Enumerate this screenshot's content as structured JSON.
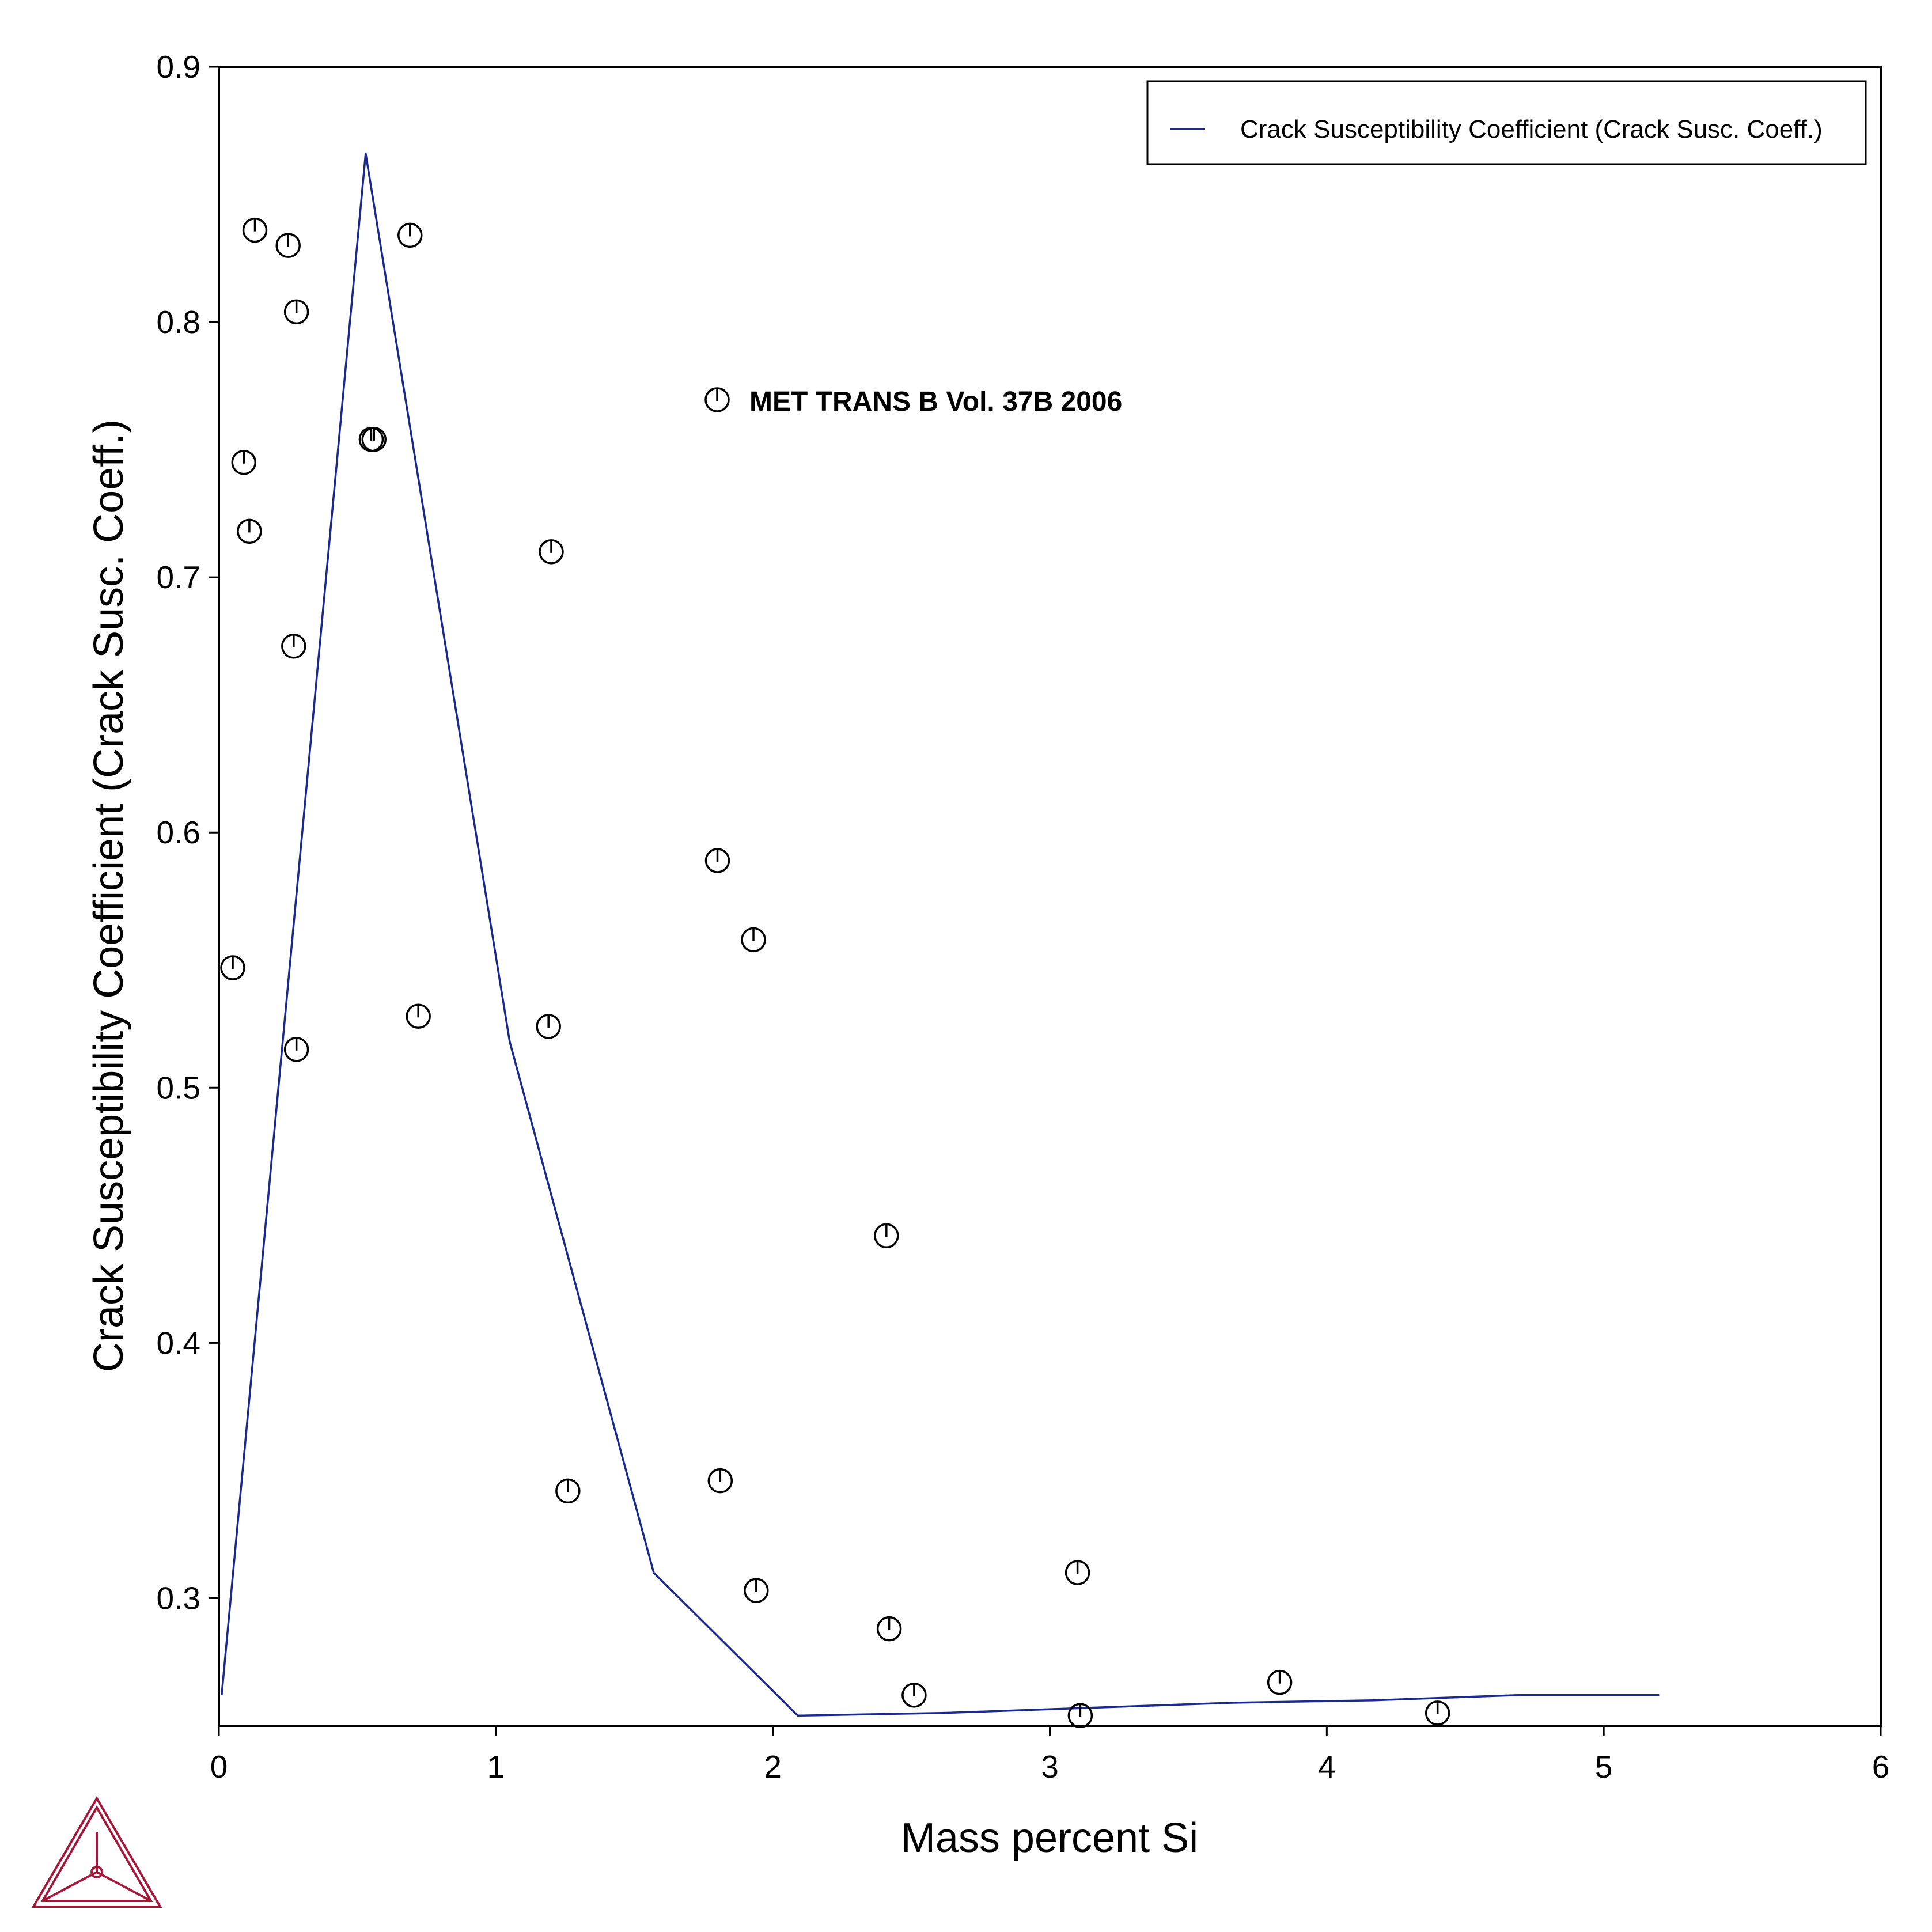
{
  "chart_data": {
    "type": "line",
    "title": "",
    "xlabel": "Mass percent Si",
    "ylabel": "Crack Susceptibility Coefficient (Crack Susc. Coeff.)",
    "xlim": [
      0,
      6
    ],
    "ylim": [
      0.25,
      0.9
    ],
    "xticks": [
      "0",
      "1",
      "2",
      "3",
      "4",
      "5",
      "6"
    ],
    "yticks": [
      "0.3",
      "0.4",
      "0.5",
      "0.6",
      "0.7",
      "0.8",
      "0.9"
    ],
    "grid": false,
    "legend_position": "top-right",
    "series": [
      {
        "name": "Crack Susceptibility Coefficient (Crack Susc. Coeff.)",
        "type": "line",
        "color": "#1a2a8c",
        "x": [
          0.01,
          0.53,
          1.05,
          1.57,
          2.09,
          2.61,
          3.13,
          3.65,
          4.17,
          4.69,
          5.2
        ],
        "y": [
          0.262,
          0.866,
          0.518,
          0.31,
          0.254,
          0.255,
          0.257,
          0.259,
          0.26,
          0.262,
          0.262
        ]
      },
      {
        "name": "MET TRANS B Vol. 37B 2006",
        "type": "scatter",
        "marker": "circle-with-tick",
        "color": "#000000",
        "x": [
          0.05,
          0.09,
          0.11,
          0.13,
          0.25,
          0.27,
          0.28,
          0.28,
          0.55,
          0.56,
          0.69,
          0.72,
          1.19,
          1.2,
          1.26,
          1.8,
          1.81,
          1.93,
          1.94,
          2.41,
          2.42,
          2.51,
          3.1,
          3.11,
          3.83,
          4.4
        ],
        "y": [
          0.547,
          0.745,
          0.718,
          0.836,
          0.83,
          0.673,
          0.515,
          0.804,
          0.754,
          0.754,
          0.834,
          0.528,
          0.524,
          0.71,
          0.342,
          0.589,
          0.346,
          0.558,
          0.303,
          0.442,
          0.288,
          0.262,
          0.31,
          0.254,
          0.267,
          0.255
        ]
      }
    ],
    "legend": {
      "entries": [
        "Crack Susceptibility Coefficient (Crack Susc. Coeff.)"
      ]
    },
    "annotation": {
      "text": "MET TRANS B Vol. 37B 2006"
    }
  }
}
